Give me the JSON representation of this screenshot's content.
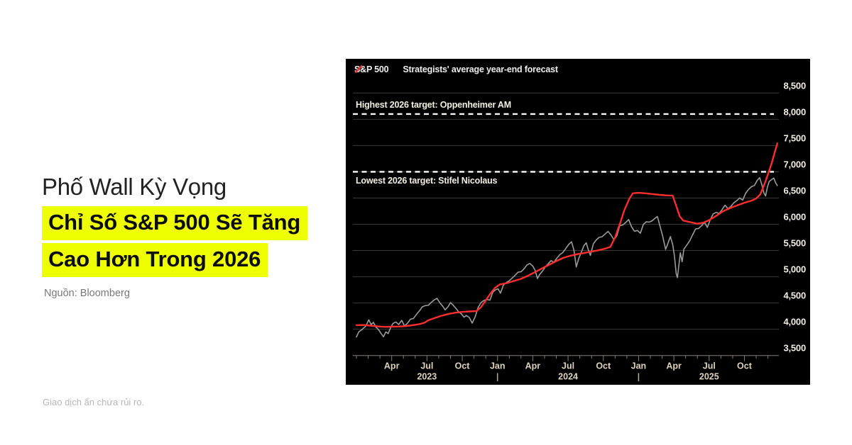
{
  "left_panel": {
    "title": "Phố Wall Kỳ Vọng",
    "highlight_line1": "Chỉ Số S&P 500 Sẽ Tăng",
    "highlight_line2": "Cao Hơn Trong 2026",
    "highlight_color": "#eeff01",
    "source": "Nguồn: Bloomberg",
    "disclaimer": "Giao dịch ẩn chứa rủi ro."
  },
  "chart": {
    "background": "#000000",
    "gridline_color": "#3a3a3a",
    "axis_color": "#8a English8270",
    "legend": [
      {
        "label": "S&P 500",
        "marker_color": "#9b9b9b"
      },
      {
        "label": "Strategists' average year-end forecast",
        "marker_color": "#ff2e2e"
      }
    ]
  },
  "chart_data": {
    "type": "line",
    "x_axis": {
      "unit": "months since Jan 2023",
      "domain": [
        0,
        35.8
      ],
      "month_tick_step": 1,
      "labeled_months": [
        {
          "m": 3,
          "label": "Apr"
        },
        {
          "m": 6,
          "label": "Jul"
        },
        {
          "m": 9,
          "label": "Oct"
        },
        {
          "m": 12,
          "label": "Jan"
        },
        {
          "m": 15,
          "label": "Apr"
        },
        {
          "m": 18,
          "label": "Jul"
        },
        {
          "m": 21,
          "label": "Oct"
        },
        {
          "m": 24,
          "label": "Jan"
        },
        {
          "m": 27,
          "label": "Apr"
        },
        {
          "m": 30,
          "label": "Jul"
        },
        {
          "m": 33,
          "label": "Oct"
        }
      ],
      "year_labels": [
        {
          "m": 6,
          "label": "2023"
        },
        {
          "m": 18,
          "label": "2024"
        },
        {
          "m": 30,
          "label": "2025"
        }
      ],
      "year_separators": [
        {
          "m": 12,
          "label": "|"
        },
        {
          "m": 24,
          "label": "|"
        }
      ]
    },
    "y_axis": {
      "min": 3500,
      "max": 8500,
      "step": 500,
      "tick_labels": [
        "3,500",
        "4,000",
        "4,500",
        "5,000",
        "5,500",
        "6,000",
        "6,500",
        "7,000",
        "7,500",
        "8,000",
        "8,500"
      ],
      "label_color": "#f2eee2"
    },
    "reference_lines": [
      {
        "name": "highest-2026-target",
        "label": "Highest 2026 target: Oppenheimer AM",
        "value": 8100,
        "label_side": "above"
      },
      {
        "name": "lowest-2026-target",
        "label": "Lowest 2026 target: Stifel Nicolaus",
        "value": 7000,
        "label_side": "below"
      }
    ],
    "series": [
      {
        "name": "S&P 500",
        "color": "#9b9b9b",
        "width": 1.6,
        "points": [
          [
            0,
            3853
          ],
          [
            0.2,
            3950
          ],
          [
            0.5,
            3999
          ],
          [
            0.8,
            4060
          ],
          [
            1.05,
            4179
          ],
          [
            1.25,
            4090
          ],
          [
            1.45,
            4130
          ],
          [
            1.65,
            4045
          ],
          [
            1.9,
            3986
          ],
          [
            2.1,
            3919
          ],
          [
            2.3,
            3856
          ],
          [
            2.5,
            3948
          ],
          [
            2.7,
            3917
          ],
          [
            2.9,
            4027
          ],
          [
            3.1,
            4109
          ],
          [
            3.35,
            4138
          ],
          [
            3.6,
            4090
          ],
          [
            3.85,
            4169
          ],
          [
            4.1,
            4061
          ],
          [
            4.35,
            4115
          ],
          [
            4.6,
            4192
          ],
          [
            4.85,
            4205
          ],
          [
            5.1,
            4283
          ],
          [
            5.35,
            4348
          ],
          [
            5.6,
            4426
          ],
          [
            5.85,
            4450
          ],
          [
            6.1,
            4455
          ],
          [
            6.35,
            4510
          ],
          [
            6.6,
            4555
          ],
          [
            6.85,
            4589
          ],
          [
            7.1,
            4501
          ],
          [
            7.35,
            4437
          ],
          [
            7.55,
            4370
          ],
          [
            7.8,
            4433
          ],
          [
            8.0,
            4508
          ],
          [
            8.2,
            4465
          ],
          [
            8.45,
            4402
          ],
          [
            8.7,
            4330
          ],
          [
            8.95,
            4288
          ],
          [
            9.15,
            4229
          ],
          [
            9.35,
            4263
          ],
          [
            9.6,
            4224
          ],
          [
            9.85,
            4117
          ],
          [
            10.1,
            4238
          ],
          [
            10.35,
            4415
          ],
          [
            10.6,
            4508
          ],
          [
            10.85,
            4550
          ],
          [
            11.1,
            4569
          ],
          [
            11.35,
            4554
          ],
          [
            11.6,
            4707
          ],
          [
            11.85,
            4754
          ],
          [
            12.05,
            4770
          ],
          [
            12.25,
            4688
          ],
          [
            12.5,
            4840
          ],
          [
            12.75,
            4890
          ],
          [
            13.0,
            4924
          ],
          [
            13.25,
            4975
          ],
          [
            13.5,
            5030
          ],
          [
            13.75,
            5088
          ],
          [
            14.0,
            5096
          ],
          [
            14.25,
            5150
          ],
          [
            14.5,
            5224
          ],
          [
            14.75,
            5254
          ],
          [
            15.0,
            5204
          ],
          [
            15.2,
            5123
          ],
          [
            15.4,
            4967
          ],
          [
            15.6,
            5048
          ],
          [
            15.8,
            5100
          ],
          [
            16.05,
            5180
          ],
          [
            16.3,
            5246
          ],
          [
            16.55,
            5308
          ],
          [
            16.8,
            5277
          ],
          [
            17.05,
            5354
          ],
          [
            17.3,
            5421
          ],
          [
            17.55,
            5460
          ],
          [
            17.8,
            5537
          ],
          [
            18.05,
            5615
          ],
          [
            18.3,
            5667
          ],
          [
            18.5,
            5505
          ],
          [
            18.7,
            5186
          ],
          [
            18.9,
            5344
          ],
          [
            19.1,
            5455
          ],
          [
            19.35,
            5591
          ],
          [
            19.55,
            5648
          ],
          [
            19.7,
            5528
          ],
          [
            19.9,
            5408
          ],
          [
            20.15,
            5626
          ],
          [
            20.4,
            5702
          ],
          [
            20.65,
            5751
          ],
          [
            20.9,
            5762
          ],
          [
            21.15,
            5815
          ],
          [
            21.4,
            5864
          ],
          [
            21.65,
            5797
          ],
          [
            21.9,
            5705
          ],
          [
            22.15,
            5783
          ],
          [
            22.4,
            5973
          ],
          [
            22.65,
            5987
          ],
          [
            22.9,
            6032
          ],
          [
            23.15,
            6090
          ],
          [
            23.4,
            5951
          ],
          [
            23.65,
            5867
          ],
          [
            23.9,
            5882
          ],
          [
            24.15,
            5828
          ],
          [
            24.4,
            5996
          ],
          [
            24.65,
            6049
          ],
          [
            24.9,
            6040
          ],
          [
            25.15,
            6066
          ],
          [
            25.4,
            6115
          ],
          [
            25.6,
            6147
          ],
          [
            25.8,
            5983
          ],
          [
            26.05,
            5770
          ],
          [
            26.3,
            5521
          ],
          [
            26.5,
            5638
          ],
          [
            26.7,
            5767
          ],
          [
            26.9,
            5612
          ],
          [
            27.05,
            5396
          ],
          [
            27.2,
            5062
          ],
          [
            27.3,
            4983
          ],
          [
            27.45,
            5268
          ],
          [
            27.55,
            5456
          ],
          [
            27.7,
            5287
          ],
          [
            27.85,
            5525
          ],
          [
            28.1,
            5604
          ],
          [
            28.35,
            5687
          ],
          [
            28.6,
            5802
          ],
          [
            28.85,
            5912
          ],
          [
            29.1,
            5921
          ],
          [
            29.35,
            5970
          ],
          [
            29.6,
            6038
          ],
          [
            29.85,
            5940
          ],
          [
            30.1,
            6092
          ],
          [
            30.35,
            6198
          ],
          [
            30.6,
            6227
          ],
          [
            30.85,
            6205
          ],
          [
            31.1,
            6280
          ],
          [
            31.35,
            6363
          ],
          [
            31.6,
            6297
          ],
          [
            31.85,
            6339
          ],
          [
            32.1,
            6411
          ],
          [
            32.35,
            6449
          ],
          [
            32.6,
            6502
          ],
          [
            32.85,
            6460
          ],
          [
            33.1,
            6587
          ],
          [
            33.35,
            6664
          ],
          [
            33.6,
            6715
          ],
          [
            33.85,
            6740
          ],
          [
            34.1,
            6840
          ],
          [
            34.3,
            6890
          ],
          [
            34.5,
            6737
          ],
          [
            34.65,
            6602
          ],
          [
            34.8,
            6538
          ],
          [
            34.95,
            6705
          ],
          [
            35.1,
            6812
          ],
          [
            35.3,
            6849
          ],
          [
            35.5,
            6880
          ],
          [
            35.65,
            6790
          ],
          [
            35.8,
            6740
          ]
        ]
      },
      {
        "name": "Strategists' average year-end forecast",
        "color": "#ff2e2e",
        "width": 2.4,
        "points": [
          [
            0,
            4078
          ],
          [
            0.6,
            4080
          ],
          [
            1.2,
            4068
          ],
          [
            1.8,
            4055
          ],
          [
            2.4,
            4045
          ],
          [
            3.0,
            4050
          ],
          [
            3.6,
            4052
          ],
          [
            4.2,
            4060
          ],
          [
            4.8,
            4078
          ],
          [
            5.4,
            4100
          ],
          [
            5.8,
            4125
          ],
          [
            6.1,
            4170
          ],
          [
            6.6,
            4210
          ],
          [
            7.2,
            4255
          ],
          [
            7.8,
            4290
          ],
          [
            8.4,
            4315
          ],
          [
            9.0,
            4330
          ],
          [
            9.6,
            4340
          ],
          [
            10.2,
            4345
          ],
          [
            10.6,
            4420
          ],
          [
            11.0,
            4550
          ],
          [
            11.4,
            4680
          ],
          [
            11.8,
            4790
          ],
          [
            12.2,
            4855
          ],
          [
            12.8,
            4880
          ],
          [
            13.4,
            4920
          ],
          [
            14.0,
            4960
          ],
          [
            14.6,
            5020
          ],
          [
            15.2,
            5090
          ],
          [
            15.8,
            5160
          ],
          [
            16.4,
            5230
          ],
          [
            17.0,
            5300
          ],
          [
            17.6,
            5360
          ],
          [
            18.2,
            5400
          ],
          [
            18.8,
            5430
          ],
          [
            19.4,
            5455
          ],
          [
            20.0,
            5480
          ],
          [
            20.6,
            5505
          ],
          [
            21.2,
            5540
          ],
          [
            21.6,
            5570
          ],
          [
            22.0,
            5750
          ],
          [
            22.4,
            6000
          ],
          [
            22.8,
            6280
          ],
          [
            23.2,
            6480
          ],
          [
            23.5,
            6590
          ],
          [
            24.0,
            6600
          ],
          [
            24.6,
            6590
          ],
          [
            25.2,
            6575
          ],
          [
            25.8,
            6560
          ],
          [
            26.4,
            6550
          ],
          [
            26.9,
            6545
          ],
          [
            27.2,
            6350
          ],
          [
            27.5,
            6150
          ],
          [
            27.8,
            6070
          ],
          [
            28.4,
            6040
          ],
          [
            29.0,
            6010
          ],
          [
            29.5,
            6030
          ],
          [
            30.0,
            6080
          ],
          [
            30.6,
            6160
          ],
          [
            31.2,
            6250
          ],
          [
            31.8,
            6310
          ],
          [
            32.4,
            6360
          ],
          [
            33.0,
            6410
          ],
          [
            33.6,
            6450
          ],
          [
            34.0,
            6490
          ],
          [
            34.35,
            6570
          ],
          [
            34.7,
            6760
          ],
          [
            35.0,
            6950
          ],
          [
            35.3,
            7150
          ],
          [
            35.55,
            7350
          ],
          [
            35.8,
            7540
          ]
        ]
      }
    ]
  }
}
